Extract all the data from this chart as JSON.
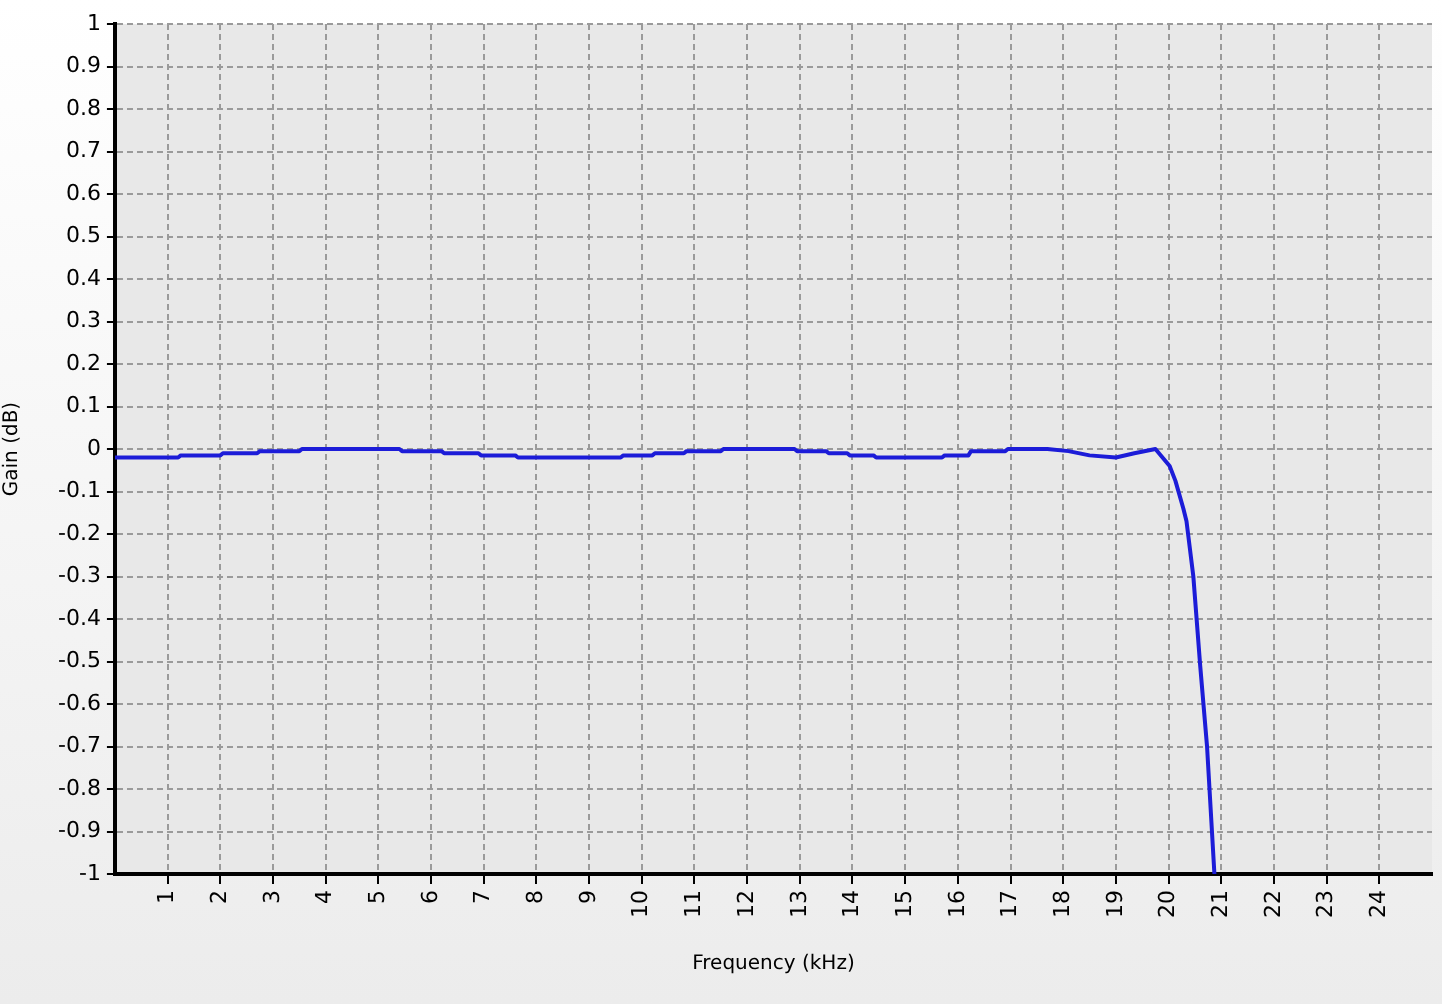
{
  "chart_data": {
    "type": "line",
    "xlabel": "Frequency (kHz)",
    "ylabel": "Gain (dB)",
    "xlim": [
      0,
      25
    ],
    "xticks": [
      1,
      2,
      3,
      4,
      5,
      6,
      7,
      8,
      9,
      10,
      11,
      12,
      13,
      14,
      15,
      16,
      17,
      18,
      19,
      20,
      21,
      22,
      23,
      24
    ],
    "ylim": [
      -1,
      1
    ],
    "yticks": [
      -1,
      -0.9,
      -0.8,
      -0.7,
      -0.6,
      -0.5,
      -0.4,
      -0.3,
      -0.2,
      -0.1,
      0,
      0.1,
      0.2,
      0.3,
      0.4,
      0.5,
      0.6,
      0.7,
      0.8,
      0.9,
      1
    ],
    "grid": true,
    "legend": false,
    "marker": "none",
    "line_style": "solid",
    "series": [
      {
        "color": "#1c1cd8",
        "x": [
          0,
          1.2,
          1.25,
          2.0,
          2.05,
          2.7,
          2.75,
          3.5,
          3.55,
          5.4,
          5.45,
          6.2,
          6.25,
          6.9,
          6.95,
          7.6,
          7.65,
          9.6,
          9.65,
          10.2,
          10.25,
          10.8,
          10.85,
          11.5,
          11.55,
          12.9,
          12.95,
          13.5,
          13.55,
          13.9,
          13.95,
          14.4,
          14.45,
          15.7,
          15.75,
          16.2,
          16.25,
          16.9,
          16.95,
          17.7,
          18.1,
          18.5,
          19.0,
          19.35,
          19.75,
          20.02,
          20.13,
          20.28,
          20.34,
          20.47,
          20.6,
          20.73,
          20.87
        ],
        "values": [
          -0.02,
          -0.02,
          -0.015,
          -0.015,
          -0.01,
          -0.01,
          -0.005,
          -0.005,
          0,
          0,
          -0.005,
          -0.005,
          -0.01,
          -0.01,
          -0.015,
          -0.015,
          -0.02,
          -0.02,
          -0.015,
          -0.015,
          -0.01,
          -0.01,
          -0.005,
          -0.005,
          0,
          0,
          -0.005,
          -0.005,
          -0.01,
          -0.01,
          -0.015,
          -0.015,
          -0.02,
          -0.02,
          -0.015,
          -0.015,
          -0.005,
          -0.005,
          0,
          0,
          -0.005,
          -0.015,
          -0.02,
          -0.01,
          0,
          -0.04,
          -0.075,
          -0.14,
          -0.17,
          -0.3,
          -0.51,
          -0.7,
          -1
        ]
      }
    ]
  }
}
